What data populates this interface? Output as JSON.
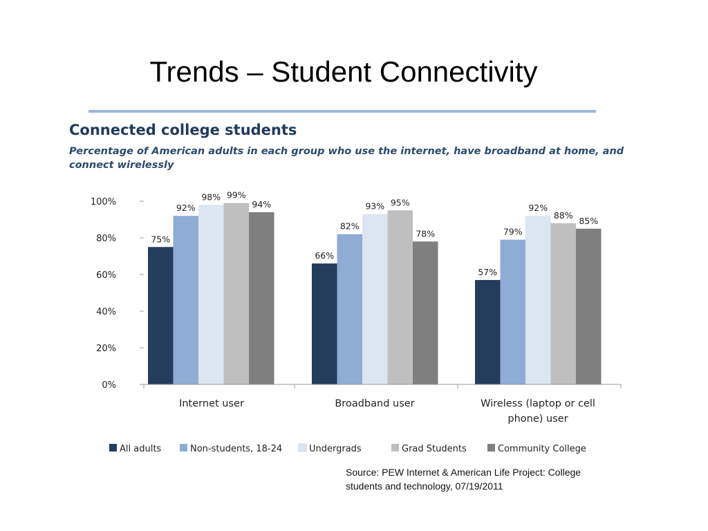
{
  "slide": {
    "title": "Trends – Student Connectivity"
  },
  "source": {
    "line1": "Source:  PEW Internet & American Life Project: College",
    "line2": "students and technology, 07/19/2011"
  },
  "chart_data": {
    "type": "bar",
    "title": "Connected college students",
    "subtitle_line1": "Percentage of American adults in each group who use the internet, have broadband at home, and",
    "subtitle_line2": "connect wirelessly",
    "xlabel": "",
    "ylabel": "",
    "ylim": [
      0,
      100
    ],
    "yticks": [
      0,
      20,
      40,
      60,
      80,
      100
    ],
    "ytick_labels": [
      "0%",
      "20%",
      "40%",
      "60%",
      "80%",
      "100%"
    ],
    "categories": [
      [
        "Internet user"
      ],
      [
        "Broadband user"
      ],
      [
        "Wireless (laptop or cell",
        "phone) user"
      ]
    ],
    "series": [
      {
        "name": "All adults",
        "color": "#253d5c",
        "values": [
          75,
          66,
          57
        ]
      },
      {
        "name": "Non-students, 18-24",
        "color": "#8eacd4",
        "values": [
          92,
          82,
          79
        ]
      },
      {
        "name": "Undergrads",
        "color": "#dce6f1",
        "values": [
          98,
          93,
          92
        ]
      },
      {
        "name": "Grad Students",
        "color": "#bfbfbf",
        "values": [
          99,
          95,
          88
        ]
      },
      {
        "name": "Community College",
        "color": "#7f7f7f",
        "values": [
          94,
          78,
          85
        ]
      }
    ],
    "data_labels": [
      [
        "75%",
        "66%",
        "57%"
      ],
      [
        "92%",
        "82%",
        "79%"
      ],
      [
        "98%",
        "93%",
        "92%"
      ],
      [
        "99%",
        "95%",
        "88%"
      ],
      [
        "94%",
        "78%",
        "85%"
      ]
    ],
    "grid": false,
    "legend_position": "bottom"
  }
}
